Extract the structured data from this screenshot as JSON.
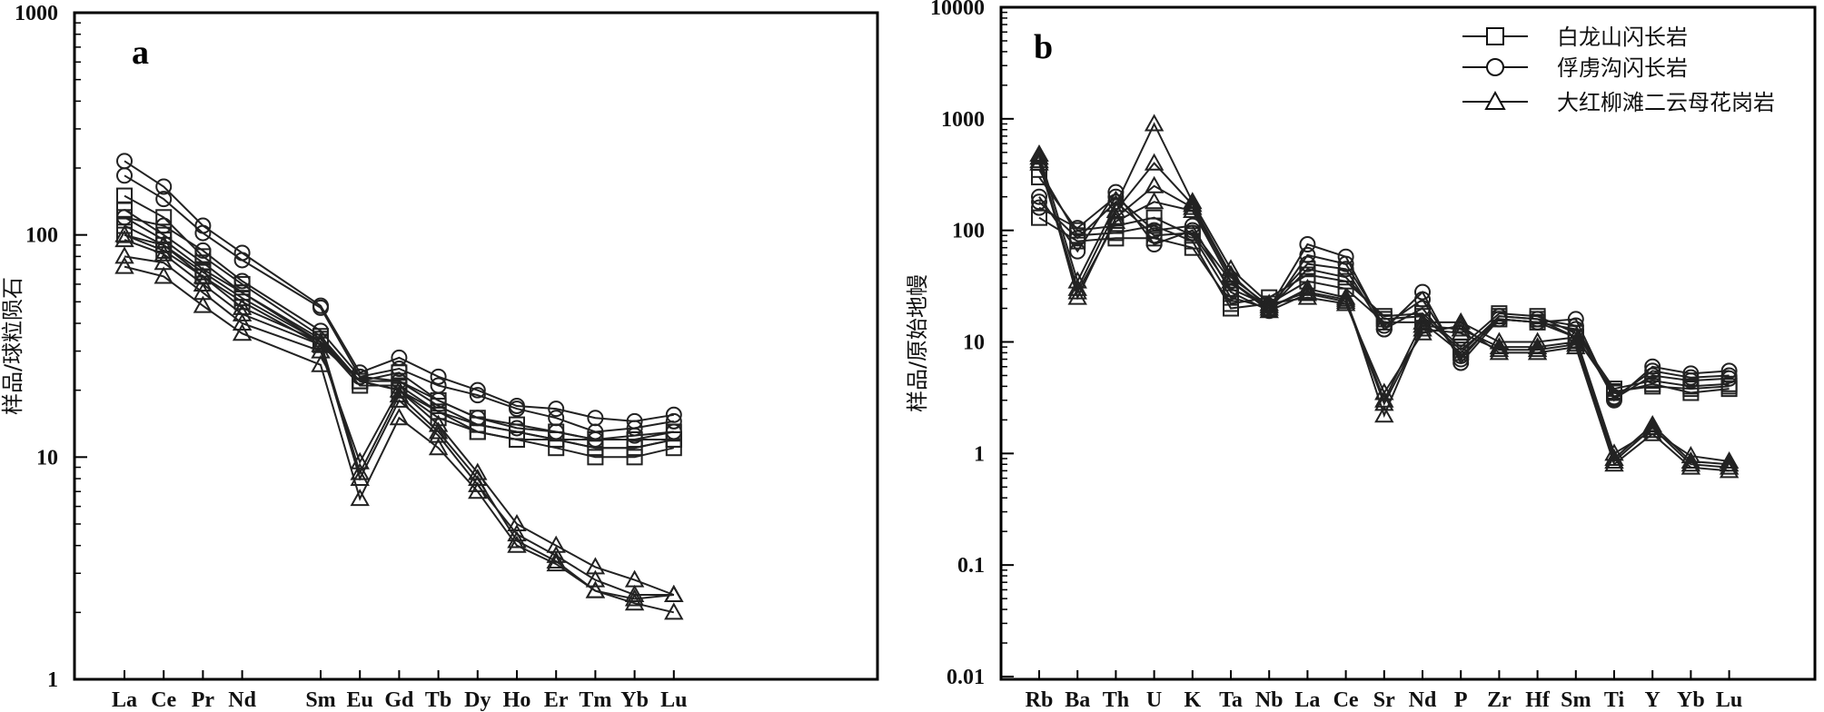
{
  "legend": [
    {
      "marker": "square",
      "label": "白龙山闪长岩"
    },
    {
      "marker": "circle",
      "label": "俘虏沟闪长岩"
    },
    {
      "marker": "triangle",
      "label": "大红柳滩二云母花岗岩"
    }
  ],
  "chart_data": [
    {
      "panel": "a",
      "type": "line",
      "yscale": "log",
      "ylim": [
        1,
        1000
      ],
      "ytick_labels": [
        "1",
        "10",
        "100",
        "1000"
      ],
      "ylabel": "样品/球粒陨石",
      "categories": [
        "La",
        "Ce",
        "Pr",
        "Nd",
        "Sm",
        "Eu",
        "Gd",
        "Tb",
        "Dy",
        "Ho",
        "Er",
        "Tm",
        "Yb",
        "Lu"
      ],
      "category_slots": [
        0,
        1,
        2,
        3,
        5,
        6,
        7,
        8,
        9,
        10,
        11,
        12,
        13,
        14
      ],
      "series": [
        {
          "group": "square",
          "values": [
            150,
            120,
            80,
            60,
            35,
            22,
            20,
            15,
            13,
            12,
            11,
            10,
            10,
            11
          ]
        },
        {
          "group": "square",
          "values": [
            130,
            100,
            75,
            55,
            33,
            22,
            22,
            17,
            14,
            13,
            12,
            11,
            11,
            12
          ]
        },
        {
          "group": "square",
          "values": [
            110,
            90,
            68,
            52,
            33,
            21,
            21,
            16,
            14,
            13,
            12,
            12,
            12,
            12
          ]
        },
        {
          "group": "square",
          "values": [
            120,
            95,
            70,
            55,
            34,
            22,
            24,
            18,
            15,
            14,
            13,
            12,
            12,
            13
          ]
        },
        {
          "group": "square",
          "values": [
            100,
            85,
            65,
            50,
            32,
            22,
            20,
            16,
            13,
            12,
            12,
            11,
            11,
            12
          ]
        },
        {
          "group": "circle",
          "values": [
            215,
            165,
            110,
            83,
            48,
            24,
            28,
            23,
            20,
            17,
            16.5,
            15,
            14.5,
            15.5
          ]
        },
        {
          "group": "circle",
          "values": [
            185,
            145,
            102,
            77,
            47,
            23,
            25,
            21,
            19,
            16.5,
            15,
            13,
            13.5,
            14.5
          ]
        },
        {
          "group": "circle",
          "values": [
            120,
            110,
            85,
            62,
            37,
            23,
            22,
            18,
            15,
            13.5,
            13,
            12,
            12.5,
            13
          ]
        },
        {
          "group": "triangle",
          "values": [
            100,
            90,
            65,
            47,
            33,
            8.5,
            19,
            13,
            8,
            4.2,
            3.4,
            2.5,
            2.3,
            2.4
          ]
        },
        {
          "group": "triangle",
          "values": [
            80,
            75,
            55,
            40,
            30,
            9.5,
            20,
            14,
            8.5,
            5,
            4,
            3.2,
            2.8,
            2.4
          ]
        },
        {
          "group": "triangle",
          "values": [
            72,
            65,
            48,
            36,
            26,
            6.5,
            15,
            11,
            7,
            4,
            3.3,
            2.5,
            2.2,
            2.0
          ]
        },
        {
          "group": "triangle",
          "values": [
            95,
            82,
            60,
            44,
            32,
            8,
            18,
            12.5,
            7.5,
            4.5,
            3.6,
            2.8,
            2.4,
            2.4
          ]
        }
      ]
    },
    {
      "panel": "b",
      "type": "line",
      "yscale": "log",
      "ylim": [
        0.01,
        10000
      ],
      "ytick_labels": [
        "0.01",
        "0.1",
        "1",
        "10",
        "100",
        "1000",
        "10000"
      ],
      "ylabel": "样品/原始地幔",
      "categories": [
        "Rb",
        "Ba",
        "Th",
        "U",
        "K",
        "Ta",
        "Nb",
        "La",
        "Ce",
        "Sr",
        "Nd",
        "P",
        "Zr",
        "Hf",
        "Sm",
        "Ti",
        "Y",
        "Yb",
        "Lu"
      ],
      "series": [
        {
          "group": "square",
          "values": [
            350,
            90,
            95,
            110,
            80,
            20,
            22,
            35,
            30,
            15,
            15,
            8,
            17,
            16,
            11,
            3.5,
            4.2,
            3.5,
            3.8
          ]
        },
        {
          "group": "square",
          "values": [
            130,
            80,
            85,
            85,
            70,
            22,
            25,
            40,
            35,
            17,
            18,
            9,
            18,
            17,
            12,
            3.8,
            4.5,
            4.0,
            4.2
          ]
        },
        {
          "group": "square",
          "values": [
            300,
            100,
            110,
            130,
            90,
            25,
            20,
            45,
            38,
            16,
            17,
            8.5,
            16,
            15,
            11,
            3.6,
            4.0,
            3.8,
            4.0
          ]
        },
        {
          "group": "circle",
          "values": [
            200,
            65,
            220,
            75,
            100,
            35,
            20,
            75,
            58,
            13,
            28,
            6.5,
            16,
            15,
            16,
            3.0,
            6.0,
            5.2,
            5.5
          ]
        },
        {
          "group": "circle",
          "values": [
            160,
            105,
            200,
            100,
            110,
            28,
            19,
            60,
            50,
            14,
            24,
            7,
            17,
            16,
            14,
            3.2,
            5.5,
            4.8,
            5.0
          ]
        },
        {
          "group": "circle",
          "values": [
            180,
            85,
            180,
            90,
            95,
            30,
            21,
            50,
            45,
            13,
            20,
            7.5,
            16,
            15,
            13,
            3.1,
            5.0,
            4.5,
            4.7
          ]
        },
        {
          "group": "triangle",
          "values": [
            480,
            35,
            170,
            900,
            180,
            45,
            22,
            25,
            22,
            3.5,
            12,
            14,
            8,
            8,
            9,
            0.8,
            1.5,
            0.75,
            0.7
          ]
        },
        {
          "group": "triangle",
          "values": [
            420,
            30,
            150,
            400,
            170,
            40,
            20,
            30,
            25,
            2.2,
            14,
            13,
            9,
            9,
            10,
            0.9,
            1.8,
            0.85,
            0.8
          ]
        },
        {
          "group": "triangle",
          "values": [
            450,
            25,
            130,
            250,
            160,
            38,
            21,
            28,
            24,
            3.0,
            15,
            15,
            10,
            10,
            11,
            1.0,
            1.6,
            0.95,
            0.85
          ]
        },
        {
          "group": "triangle",
          "values": [
            400,
            28,
            120,
            180,
            150,
            35,
            19,
            27,
            23,
            2.8,
            13,
            12,
            8.5,
            8.5,
            9.5,
            0.85,
            1.7,
            0.8,
            0.75
          ]
        }
      ]
    }
  ]
}
